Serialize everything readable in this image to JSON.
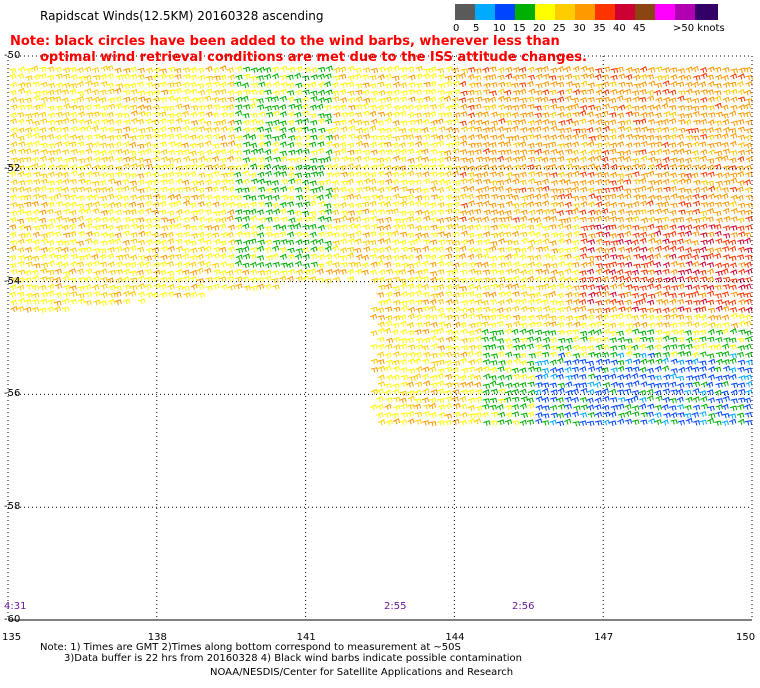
{
  "header": {
    "title": "Rapidscat Winds(12.5KM) 20160328 ascending",
    "note_line1": "Note: black circles have been added to the wind barbs, wherever less than",
    "note_line2": "optimal wind retrieval conditions are met due to the ISS attitude changes."
  },
  "legend": {
    "colors": [
      "#5a5a5a",
      "#00aaff",
      "#0044ff",
      "#00b000",
      "#ffff00",
      "#ffcc00",
      "#ff9900",
      "#ff3300",
      "#cc0033",
      "#8b4513",
      "#ff00ff",
      "#b000b0",
      "#330066"
    ],
    "labels": [
      "0",
      "5",
      "10",
      "15",
      "20",
      "25",
      "30",
      "35",
      "40",
      "45",
      ">50 knots"
    ],
    "label_positions_index": [
      0,
      1,
      2,
      3,
      4,
      5,
      6,
      7,
      8,
      9,
      11
    ]
  },
  "axes": {
    "lat_labels": [
      "-50",
      "-52",
      "-54",
      "-56",
      "-58",
      "-60"
    ],
    "lon_labels": [
      "135",
      "138",
      "141",
      "144",
      "147",
      "150"
    ]
  },
  "time_labels": [
    "4:31",
    "2:55",
    "2:56"
  ],
  "footer": {
    "line1": "Note: 1) Times are GMT 2)Times along bottom correspond to measurement at ~50S",
    "line2": "3)Data buffer is 22 hrs from 20160328 4) Black wind barbs indicate possible contamination",
    "line3": "NOAA/NESDIS/Center for Satellite Applications and Research"
  },
  "chart_data": {
    "type": "wind-barb-map",
    "lat_range": [
      -60,
      -50
    ],
    "lon_range": [
      135,
      150
    ],
    "grid": true,
    "unit": "knots",
    "speed_bins": [
      0,
      5,
      10,
      15,
      20,
      25,
      30,
      35,
      40,
      45,
      50
    ],
    "swaths": [
      {
        "lat_range": [
          -54.6,
          -50
        ],
        "lon_range": [
          135,
          150
        ]
      },
      {
        "lat_range": [
          -56.6,
          -54.2
        ],
        "lon_range": [
          142.3,
          150
        ]
      }
    ]
  }
}
